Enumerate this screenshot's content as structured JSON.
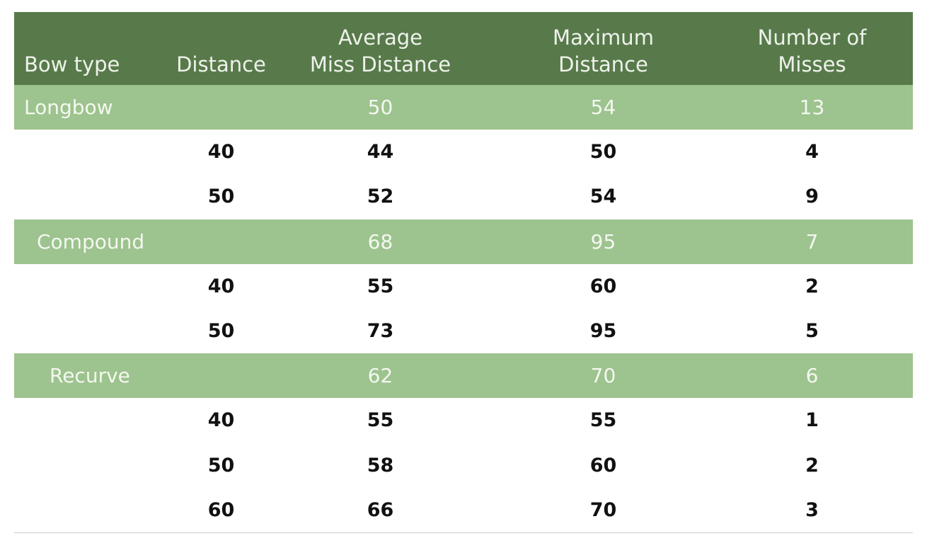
{
  "table": {
    "header": [
      [
        "Bow type"
      ],
      [
        "Distance"
      ],
      [
        "Average",
        "Miss Distance"
      ],
      [
        "Maximum",
        "Distance"
      ],
      [
        "Number of",
        "Misses"
      ]
    ],
    "groups": [
      {
        "name": "Longbow",
        "summary": [
          50,
          54,
          13
        ],
        "rows": [
          [
            40,
            44,
            50,
            4
          ],
          [
            50,
            52,
            54,
            9
          ]
        ]
      },
      {
        "name": "Compound",
        "summary": [
          68,
          95,
          7
        ],
        "rows": [
          [
            40,
            55,
            60,
            2
          ],
          [
            50,
            73,
            95,
            5
          ]
        ]
      },
      {
        "name": "Recurve",
        "summary": [
          62,
          70,
          6
        ],
        "rows": [
          [
            40,
            55,
            55,
            1
          ],
          [
            50,
            58,
            60,
            2
          ],
          [
            60,
            66,
            70,
            3
          ]
        ]
      }
    ]
  }
}
